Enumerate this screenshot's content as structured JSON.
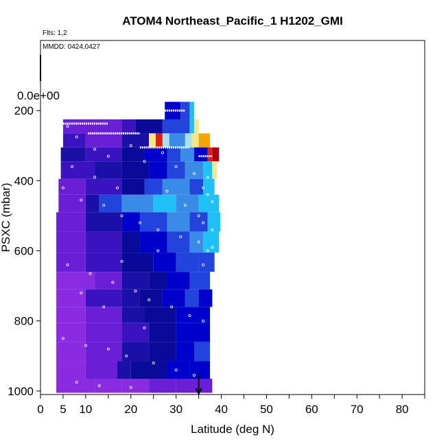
{
  "chart_data": {
    "type": "heatmap",
    "title": "ATOM4 Northeast_Pacific_1 H1202_GMI",
    "annotations": [
      "Flts: 1,2",
      "MMDD: 0424,0427"
    ],
    "xlabel": "Latitude (deg N)",
    "ylabel": "PSXC (mbar)",
    "xlim": [
      0,
      85
    ],
    "ylim": [
      1010,
      0
    ],
    "x_ticks": [
      0,
      5,
      10,
      20,
      30,
      40,
      50,
      60,
      70,
      80
    ],
    "x_minor_ticks": [
      15,
      25,
      35,
      45,
      55,
      65,
      75,
      85
    ],
    "y_ticks": [
      200,
      400,
      600,
      800,
      1000
    ],
    "y_zero_label": "0.0e+00",
    "arrow_x": 35,
    "colors": {
      "c0": "#8a2be2",
      "c1": "#6a1fd6",
      "c2": "#3a12c0",
      "c3": "#1a10a8",
      "c4": "#0a0a9a",
      "c5": "#0000cc",
      "c6": "#2244dd",
      "c7": "#3a8ae8",
      "c8": "#1fc0f5",
      "c9": "#a8e0f0",
      "c10": "#f5e68a",
      "c11": "#f5a500",
      "c12": "#e02010",
      "c13": "#b00010"
    },
    "bands": [
      {
        "p0": 175,
        "p1": 225,
        "segments": [
          [
            27.5,
            31,
            "c5"
          ],
          [
            31,
            33,
            "c6"
          ],
          [
            33,
            34,
            "c8"
          ]
        ]
      },
      {
        "p0": 225,
        "p1": 265,
        "segments": [
          [
            5,
            18,
            "c1"
          ],
          [
            18,
            21,
            "c2"
          ],
          [
            21,
            27,
            "c4"
          ],
          [
            27,
            33,
            "c6"
          ],
          [
            33,
            34,
            "c8"
          ],
          [
            34,
            35,
            "c10"
          ]
        ]
      },
      {
        "p0": 265,
        "p1": 305,
        "segments": [
          [
            5,
            10,
            "c2"
          ],
          [
            10,
            18,
            "c1"
          ],
          [
            18,
            24,
            "c3"
          ],
          [
            24,
            25.5,
            "c10"
          ],
          [
            25.5,
            27,
            "c12"
          ],
          [
            27,
            28.5,
            "c9"
          ],
          [
            28.5,
            32,
            "c7"
          ],
          [
            32,
            33.5,
            "c9"
          ],
          [
            33.5,
            35,
            "c10"
          ],
          [
            35,
            37.5,
            "c11"
          ]
        ]
      },
      {
        "p0": 305,
        "p1": 345,
        "segments": [
          [
            4.5,
            10,
            "c3"
          ],
          [
            10,
            18,
            "c2"
          ],
          [
            18,
            23,
            "c4"
          ],
          [
            23,
            28,
            "c5"
          ],
          [
            28,
            31,
            "c6"
          ],
          [
            31,
            34,
            "c7"
          ],
          [
            34,
            37,
            "c5"
          ],
          [
            37,
            38,
            "c12"
          ],
          [
            38,
            39.5,
            "c13"
          ]
        ]
      },
      {
        "p0": 345,
        "p1": 395,
        "segments": [
          [
            4.5,
            12,
            "c2"
          ],
          [
            12,
            18,
            "c3"
          ],
          [
            18,
            24,
            "c4"
          ],
          [
            24,
            28,
            "c5"
          ],
          [
            28,
            32,
            "c6"
          ],
          [
            32,
            36,
            "c7"
          ],
          [
            36,
            38,
            "c8"
          ],
          [
            38,
            39,
            "c10"
          ]
        ]
      },
      {
        "p0": 395,
        "p1": 440,
        "segments": [
          [
            4,
            10,
            "c1"
          ],
          [
            10,
            18,
            "c2"
          ],
          [
            18,
            23,
            "c4"
          ],
          [
            23,
            27,
            "c6"
          ],
          [
            27,
            33,
            "c7"
          ],
          [
            33,
            36,
            "c6"
          ],
          [
            36,
            38.5,
            "c8"
          ]
        ]
      },
      {
        "p0": 440,
        "p1": 490,
        "segments": [
          [
            4,
            10,
            "c1"
          ],
          [
            10,
            13,
            "c3"
          ],
          [
            13,
            18,
            "c6"
          ],
          [
            18,
            25,
            "c7"
          ],
          [
            25,
            30,
            "c8"
          ],
          [
            30,
            35,
            "c7"
          ],
          [
            35,
            39.5,
            "c8"
          ]
        ]
      },
      {
        "p0": 490,
        "p1": 545,
        "segments": [
          [
            3.5,
            10,
            "c1"
          ],
          [
            10,
            18,
            "c3"
          ],
          [
            18,
            22,
            "c5"
          ],
          [
            22,
            28,
            "c6"
          ],
          [
            28,
            33,
            "c7"
          ],
          [
            33,
            37,
            "c6"
          ],
          [
            37,
            39.8,
            "c8"
          ]
        ]
      },
      {
        "p0": 545,
        "p1": 605,
        "segments": [
          [
            3.5,
            10,
            "c1"
          ],
          [
            10,
            18,
            "c2"
          ],
          [
            18,
            22,
            "c4"
          ],
          [
            22,
            28,
            "c5"
          ],
          [
            28,
            33,
            "c6"
          ],
          [
            33,
            36,
            "c7"
          ],
          [
            36,
            39.5,
            "c8"
          ]
        ]
      },
      {
        "p0": 605,
        "p1": 660,
        "segments": [
          [
            3.5,
            10,
            "c1"
          ],
          [
            10,
            18,
            "c2"
          ],
          [
            18,
            25,
            "c4"
          ],
          [
            25,
            30,
            "c5"
          ],
          [
            30,
            35,
            "c6"
          ],
          [
            35,
            38.5,
            "c6"
          ]
        ]
      },
      {
        "p0": 660,
        "p1": 710,
        "segments": [
          [
            3.5,
            12,
            "c0"
          ],
          [
            12,
            18,
            "c1"
          ],
          [
            18,
            24,
            "c3"
          ],
          [
            24,
            28,
            "c4"
          ],
          [
            28,
            33,
            "c5"
          ],
          [
            33,
            37.5,
            "c6"
          ]
        ]
      },
      {
        "p0": 710,
        "p1": 760,
        "segments": [
          [
            3.5,
            10,
            "c0"
          ],
          [
            10,
            18,
            "c2"
          ],
          [
            18,
            22,
            "c3"
          ],
          [
            22,
            27,
            "c4"
          ],
          [
            27,
            32,
            "c5"
          ],
          [
            32,
            35,
            "c6"
          ],
          [
            35,
            38,
            "c5"
          ]
        ]
      },
      {
        "p0": 760,
        "p1": 805,
        "segments": [
          [
            3.5,
            10,
            "c0"
          ],
          [
            10,
            18,
            "c1"
          ],
          [
            18,
            23,
            "c3"
          ],
          [
            23,
            30,
            "c4"
          ],
          [
            30,
            34,
            "c5"
          ],
          [
            34,
            37.5,
            "c5"
          ]
        ]
      },
      {
        "p0": 805,
        "p1": 860,
        "segments": [
          [
            3.5,
            10,
            "c0"
          ],
          [
            10,
            18,
            "c1"
          ],
          [
            18,
            24,
            "c2"
          ],
          [
            24,
            30,
            "c4"
          ],
          [
            30,
            34,
            "c5"
          ],
          [
            34,
            37.5,
            "c5"
          ]
        ]
      },
      {
        "p0": 860,
        "p1": 915,
        "segments": [
          [
            3.5,
            10,
            "c0"
          ],
          [
            10,
            18,
            "c1"
          ],
          [
            18,
            24,
            "c3"
          ],
          [
            24,
            30,
            "c4"
          ],
          [
            30,
            34,
            "c5"
          ],
          [
            34,
            37.5,
            "c6"
          ]
        ]
      },
      {
        "p0": 915,
        "p1": 965,
        "segments": [
          [
            3.5,
            10,
            "c0"
          ],
          [
            10,
            17,
            "c1"
          ],
          [
            17,
            20,
            "c3"
          ],
          [
            20,
            28,
            "c4"
          ],
          [
            28,
            33,
            "c5"
          ],
          [
            33,
            37.5,
            "c5"
          ]
        ]
      },
      {
        "p0": 965,
        "p1": 1005,
        "segments": [
          [
            3.5,
            12,
            "c0"
          ],
          [
            12,
            18,
            "c0"
          ],
          [
            18,
            24,
            "c0"
          ],
          [
            24,
            30,
            "c1"
          ],
          [
            30,
            38,
            "c1"
          ]
        ]
      }
    ],
    "track_lines": [
      {
        "p": 200,
        "x0": 27.5,
        "x1": 32
      },
      {
        "p": 237,
        "x0": 5,
        "x1": 15
      },
      {
        "p": 265,
        "x0": 10.5,
        "x1": 22
      },
      {
        "p": 305,
        "x0": 22,
        "x1": 33
      },
      {
        "p": 330,
        "x0": 35,
        "x1": 38
      }
    ],
    "sample_points": [
      [
        6,
        245
      ],
      [
        8,
        275
      ],
      [
        12,
        310
      ],
      [
        15,
        330
      ],
      [
        20,
        300
      ],
      [
        23,
        345
      ],
      [
        27,
        320
      ],
      [
        30,
        360
      ],
      [
        34,
        380
      ],
      [
        37,
        390
      ],
      [
        5,
        420
      ],
      [
        9,
        455
      ],
      [
        14,
        470
      ],
      [
        18,
        500
      ],
      [
        22,
        520
      ],
      [
        26,
        540
      ],
      [
        31,
        560
      ],
      [
        35,
        575
      ],
      [
        38,
        590
      ],
      [
        6,
        640
      ],
      [
        11,
        665
      ],
      [
        16,
        690
      ],
      [
        21,
        715
      ],
      [
        24,
        740
      ],
      [
        29,
        760
      ],
      [
        33,
        785
      ],
      [
        36,
        800
      ],
      [
        5,
        850
      ],
      [
        10,
        870
      ],
      [
        15,
        880
      ],
      [
        19,
        900
      ],
      [
        25,
        920
      ],
      [
        30,
        940
      ],
      [
        34,
        955
      ],
      [
        8,
        975
      ],
      [
        13,
        985
      ],
      [
        20,
        990
      ],
      [
        36,
        420
      ],
      [
        37,
        440
      ],
      [
        38,
        460
      ],
      [
        35,
        500
      ],
      [
        36,
        520
      ],
      [
        38,
        540
      ],
      [
        37,
        600
      ],
      [
        36,
        640
      ],
      [
        38,
        680
      ],
      [
        7,
        360
      ],
      [
        12,
        390
      ],
      [
        17,
        420
      ],
      [
        28,
        430
      ],
      [
        32,
        470
      ],
      [
        26,
        600
      ],
      [
        18,
        630
      ],
      [
        9,
        720
      ],
      [
        14,
        760
      ],
      [
        23,
        820
      ]
    ]
  }
}
